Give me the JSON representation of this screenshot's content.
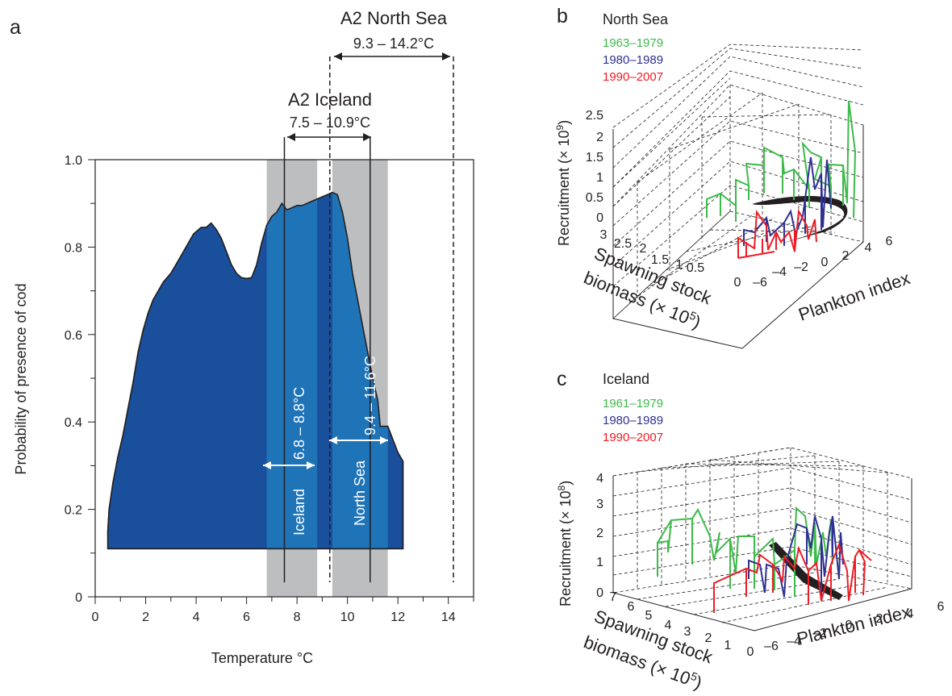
{
  "panel_a": {
    "letter": "a",
    "top_label_north_sea": "A2 North Sea",
    "top_range_north_sea": "9.3 – 14.2°C",
    "top_label_iceland": "A2 Iceland",
    "top_range_iceland": "7.5 – 10.9°C",
    "band_iceland_range": "6.8 – 8.8°C",
    "band_iceland_name": "Iceland",
    "band_north_sea_range": "9.4 – 11.6°C",
    "band_north_sea_name": "North Sea",
    "colors": {
      "curve": "#1a4f9c",
      "curve_highlight": "#1f74b8",
      "band": "#bcbec0"
    }
  },
  "panel_b": {
    "letter": "b",
    "title": "North Sea",
    "legend": [
      {
        "label": "1963–1979",
        "color": "#3dba4a"
      },
      {
        "label": "1980–1989",
        "color": "#2e3192"
      },
      {
        "label": "1990–2007",
        "color": "#ed1c24"
      }
    ],
    "zlabel": "Recruitment (× 10",
    "zlabel_exp": "9",
    "zlabel_end": ")",
    "z_ticks": [
      "0",
      "0.5",
      "1",
      "1.5",
      "2",
      "2.5"
    ],
    "y_ticks": [
      "3",
      "2.5",
      "2",
      "1.5",
      "1",
      "0.5",
      "0"
    ],
    "x_ticks": [
      "–6",
      "–4",
      "–2",
      "0",
      "2",
      "4",
      "6"
    ],
    "ylabel_line1": "Spawning stock",
    "ylabel_line2": "biomass (× 10",
    "ylabel_exp": "5",
    "ylabel_end": ")",
    "xlabel": "Plankton index"
  },
  "panel_c": {
    "letter": "c",
    "title": "Iceland",
    "legend": [
      {
        "label": "1961–1979",
        "color": "#3dba4a"
      },
      {
        "label": "1980–1989",
        "color": "#2e3192"
      },
      {
        "label": "1990–2007",
        "color": "#ed1c24"
      }
    ],
    "zlabel": "Recruitment (× 10",
    "zlabel_exp": "8",
    "zlabel_end": ")",
    "z_ticks": [
      "0",
      "1",
      "2",
      "3",
      "4"
    ],
    "y_ticks": [
      "7",
      "6",
      "5",
      "4",
      "3",
      "2",
      "1",
      "0"
    ],
    "x_ticks": [
      "–6",
      "–4",
      "–2",
      "0",
      "2",
      "4",
      "6"
    ],
    "ylabel_line1": "Spawning stock",
    "ylabel_line2": "biomass (× 10",
    "ylabel_exp": "5",
    "ylabel_end": ")",
    "xlabel": "Plankton index"
  },
  "chart_data": [
    {
      "type": "area",
      "xlabel": "Temperature °C",
      "ylabel": "Probability of presence of cod",
      "xlim": [
        0,
        15
      ],
      "ylim": [
        0,
        1.0
      ],
      "x_ticks": [
        0,
        2,
        4,
        6,
        8,
        10,
        12,
        14
      ],
      "y_ticks": [
        0,
        0.2,
        0.4,
        0.6,
        0.8,
        1.0
      ],
      "y_tick_labels": [
        "0",
        "0.2",
        "0.4",
        "0.6",
        "0.8",
        "1.0"
      ],
      "baseline": 0.11,
      "x": [
        0.5,
        0.55,
        0.7,
        0.9,
        1.1,
        1.3,
        1.5,
        1.7,
        1.9,
        2.1,
        2.3,
        2.5,
        2.7,
        3.0,
        3.3,
        3.6,
        3.9,
        4.2,
        4.4,
        4.6,
        4.8,
        5.0,
        5.2,
        5.4,
        5.6,
        5.8,
        6.0,
        6.2,
        6.4,
        6.6,
        6.8,
        7.0,
        7.2,
        7.4,
        7.6,
        7.8,
        8.0,
        8.2,
        8.4,
        8.6,
        8.8,
        9.0,
        9.2,
        9.4,
        9.6,
        9.8,
        10.0,
        10.2,
        10.4,
        10.6,
        10.8,
        11.0,
        11.2,
        11.3,
        11.4,
        11.6,
        11.8,
        12.0,
        12.2
      ],
      "values": [
        0.15,
        0.2,
        0.26,
        0.32,
        0.37,
        0.43,
        0.49,
        0.56,
        0.61,
        0.65,
        0.68,
        0.7,
        0.72,
        0.74,
        0.77,
        0.8,
        0.83,
        0.845,
        0.845,
        0.855,
        0.84,
        0.82,
        0.79,
        0.76,
        0.74,
        0.73,
        0.728,
        0.73,
        0.76,
        0.81,
        0.85,
        0.87,
        0.88,
        0.9,
        0.885,
        0.89,
        0.895,
        0.895,
        0.9,
        0.905,
        0.91,
        0.915,
        0.92,
        0.925,
        0.92,
        0.88,
        0.82,
        0.74,
        0.68,
        0.62,
        0.56,
        0.5,
        0.45,
        0.39,
        0.39,
        0.39,
        0.36,
        0.33,
        0.31
      ],
      "reference_lines": [
        {
          "x": 7.5,
          "style": "solid"
        },
        {
          "x": 10.9,
          "style": "solid"
        },
        {
          "x": 9.3,
          "style": "dashed"
        },
        {
          "x": 14.2,
          "style": "dashed"
        }
      ],
      "bands": [
        {
          "from": 6.8,
          "to": 8.8
        },
        {
          "from": 9.4,
          "to": 11.6
        }
      ]
    },
    {
      "type": "line3d",
      "panel": "b",
      "xlabel": "Plankton index",
      "xlim": [
        -6,
        6
      ],
      "ylim": [
        0,
        3
      ],
      "zlim": [
        0,
        2.5
      ]
    },
    {
      "type": "line3d",
      "panel": "c",
      "xlabel": "Plankton index",
      "xlim": [
        -6,
        6
      ],
      "ylim": [
        0,
        7
      ],
      "zlim": [
        0,
        4
      ]
    }
  ]
}
